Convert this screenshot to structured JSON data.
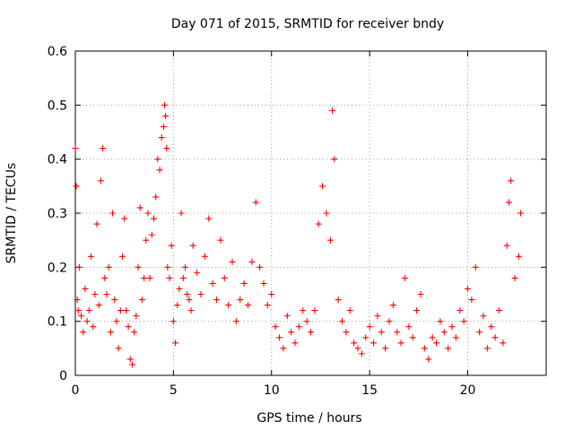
{
  "chart_data": {
    "type": "scatter",
    "title": "Day 071 of 2015, SRMTID for receiver bndy",
    "xlabel": "GPS time / hours",
    "ylabel": "SRMTID / TECUs",
    "xlim": [
      0,
      24
    ],
    "ylim": [
      0,
      0.6
    ],
    "xticks": [
      0,
      5,
      10,
      15,
      20
    ],
    "xtick_labels": [
      "0",
      "5",
      "10",
      "15",
      "20"
    ],
    "yticks": [
      0,
      0.1,
      0.2,
      0.3,
      0.4,
      0.5,
      0.6
    ],
    "ytick_labels": [
      "0",
      "0.1",
      "0.2",
      "0.3",
      "0.4",
      "0.5",
      "0.6"
    ],
    "grid": true,
    "marker": "+",
    "series": [
      {
        "name": "SRMTID",
        "color": "#ff0000",
        "x": [
          0.0,
          0.05,
          0.1,
          0.15,
          0.2,
          0.3,
          0.4,
          0.5,
          0.6,
          0.7,
          0.8,
          0.9,
          1.0,
          1.1,
          1.2,
          1.3,
          1.4,
          1.5,
          1.6,
          1.7,
          1.8,
          1.9,
          2.0,
          2.1,
          2.2,
          2.3,
          2.4,
          2.5,
          2.6,
          2.7,
          2.8,
          2.9,
          3.0,
          3.1,
          3.2,
          3.3,
          3.4,
          3.5,
          3.6,
          3.7,
          3.8,
          3.9,
          4.0,
          4.1,
          4.2,
          4.3,
          4.4,
          4.5,
          4.55,
          4.6,
          4.65,
          4.7,
          4.8,
          4.9,
          5.0,
          5.1,
          5.2,
          5.3,
          5.4,
          5.5,
          5.6,
          5.7,
          5.8,
          5.9,
          6.0,
          6.2,
          6.4,
          6.6,
          6.8,
          7.0,
          7.2,
          7.4,
          7.6,
          7.8,
          8.0,
          8.2,
          8.4,
          8.6,
          8.8,
          9.0,
          9.2,
          9.4,
          9.6,
          9.8,
          10.0,
          10.2,
          10.4,
          10.6,
          10.8,
          11.0,
          11.2,
          11.4,
          11.6,
          11.8,
          12.0,
          12.2,
          12.4,
          12.6,
          12.8,
          13.0,
          13.1,
          13.2,
          13.4,
          13.6,
          13.8,
          14.0,
          14.2,
          14.4,
          14.6,
          14.8,
          15.0,
          15.2,
          15.4,
          15.6,
          15.8,
          16.0,
          16.2,
          16.4,
          16.6,
          16.8,
          17.0,
          17.2,
          17.4,
          17.6,
          17.8,
          18.0,
          18.2,
          18.4,
          18.6,
          18.8,
          19.0,
          19.2,
          19.4,
          19.6,
          19.8,
          20.0,
          20.2,
          20.4,
          20.6,
          20.8,
          21.0,
          21.2,
          21.4,
          21.6,
          21.8,
          22.0,
          22.1,
          22.2,
          22.4,
          22.6,
          22.7
        ],
        "y": [
          0.42,
          0.35,
          0.14,
          0.12,
          0.2,
          0.11,
          0.08,
          0.16,
          0.1,
          0.12,
          0.22,
          0.09,
          0.15,
          0.28,
          0.13,
          0.36,
          0.42,
          0.18,
          0.15,
          0.2,
          0.08,
          0.3,
          0.14,
          0.1,
          0.05,
          0.12,
          0.22,
          0.29,
          0.12,
          0.09,
          0.03,
          0.02,
          0.08,
          0.11,
          0.2,
          0.31,
          0.14,
          0.18,
          0.25,
          0.3,
          0.18,
          0.26,
          0.29,
          0.33,
          0.4,
          0.38,
          0.44,
          0.46,
          0.5,
          0.48,
          0.42,
          0.2,
          0.18,
          0.24,
          0.1,
          0.06,
          0.13,
          0.16,
          0.3,
          0.18,
          0.2,
          0.15,
          0.14,
          0.12,
          0.24,
          0.19,
          0.15,
          0.22,
          0.29,
          0.17,
          0.14,
          0.25,
          0.18,
          0.13,
          0.21,
          0.1,
          0.14,
          0.17,
          0.13,
          0.21,
          0.32,
          0.2,
          0.17,
          0.13,
          0.15,
          0.09,
          0.07,
          0.05,
          0.11,
          0.08,
          0.06,
          0.09,
          0.12,
          0.1,
          0.08,
          0.12,
          0.28,
          0.35,
          0.3,
          0.25,
          0.49,
          0.4,
          0.14,
          0.1,
          0.08,
          0.12,
          0.06,
          0.05,
          0.04,
          0.07,
          0.09,
          0.06,
          0.11,
          0.08,
          0.05,
          0.1,
          0.13,
          0.08,
          0.06,
          0.18,
          0.09,
          0.07,
          0.12,
          0.15,
          0.05,
          0.03,
          0.07,
          0.06,
          0.1,
          0.08,
          0.05,
          0.09,
          0.07,
          0.12,
          0.1,
          0.16,
          0.14,
          0.2,
          0.08,
          0.11,
          0.05,
          0.09,
          0.07,
          0.12,
          0.06,
          0.24,
          0.32,
          0.36,
          0.18,
          0.22,
          0.3
        ]
      }
    ]
  }
}
